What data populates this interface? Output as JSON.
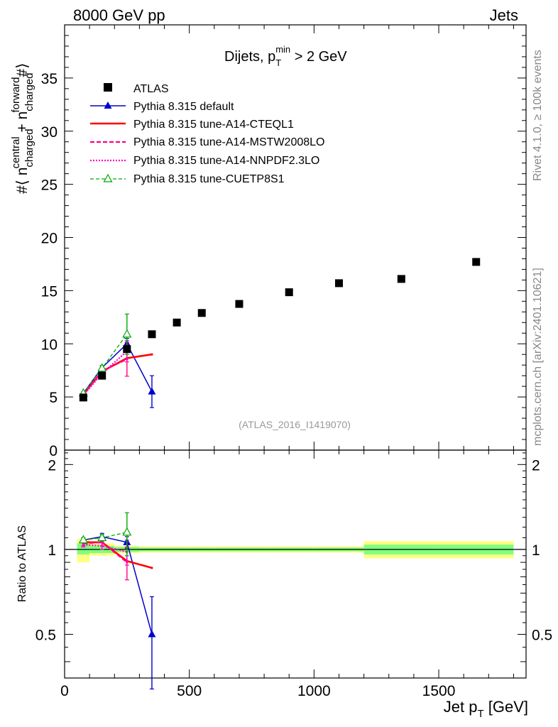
{
  "header": {
    "left": "8000 GeV pp",
    "right": "Jets"
  },
  "side_labels": {
    "rivet": "Rivet 4.1.0, ≥ 100k events",
    "mcplots": "mcplots.cern.ch [arXiv:2401.10621]"
  },
  "watermark": "(ATLAS_2016_I1419070)",
  "colors": {
    "data": "#000000",
    "default": "#0000cc",
    "cteql1": "#ff0000",
    "mstw": "#ff0080",
    "nnpdf": "#ff00cc",
    "cuetp8s1": "#00aa00",
    "band_green": "#80ff80",
    "band_yellow": "#ffff80"
  },
  "chart_data": [
    {
      "type": "scatter",
      "title": "Dijets, p_T^min > 2 GeV",
      "title_parts": {
        "main": "Dijets, p",
        "sub": "T",
        "sup": "min",
        "tail": " > 2 GeV"
      },
      "ylabel": "#⟨ n^central_charged + n^forward_charged #⟩",
      "ylabel_parts": {
        "a": "#⟨ n",
        "sup1": "central",
        "sub1": "charged",
        "b": " + n",
        "sup2": "forward",
        "sub2": "charged",
        "c": "#⟩"
      },
      "xlim": [
        0,
        1850
      ],
      "ylim": [
        0,
        40
      ],
      "yticks": [
        0,
        5,
        10,
        15,
        20,
        25,
        30,
        35
      ],
      "xticks": [
        0,
        500,
        1000,
        1500
      ],
      "legend": [
        "ATLAS",
        "Pythia 8.315 default",
        "Pythia 8.315 tune-A14-CTEQL1",
        "Pythia 8.315 tune-A14-MSTW2008LO",
        "Pythia 8.315 tune-A14-NNPDF2.3LO",
        "Pythia 8.315 tune-CUETP8S1"
      ],
      "data": {
        "name": "ATLAS",
        "x": [
          75,
          150,
          250,
          350,
          450,
          550,
          700,
          900,
          1100,
          1350,
          1650
        ],
        "y": [
          4.95,
          7.0,
          9.5,
          10.9,
          12.0,
          12.9,
          13.75,
          14.85,
          15.7,
          16.1,
          17.7
        ],
        "xerr": [
          25,
          50,
          50,
          50,
          50,
          50,
          100,
          100,
          100,
          150,
          150
        ]
      },
      "series": [
        {
          "name": "Pythia 8.315 default",
          "x": [
            75,
            150,
            250,
            350
          ],
          "y": [
            5.35,
            7.75,
            10.0,
            5.5
          ],
          "yerr": [
            0.1,
            0.2,
            0.5,
            1.5
          ],
          "marker": "triangle"
        },
        {
          "name": "Pythia 8.315 tune-A14-CTEQL1",
          "x": [
            75,
            150,
            250,
            350
          ],
          "y": [
            5.25,
            7.4,
            8.65,
            9.0
          ],
          "yerr": [
            0,
            0,
            0,
            0
          ],
          "marker": "none"
        },
        {
          "name": "Pythia 8.315 tune-A14-MSTW2008LO",
          "x": [
            75,
            150,
            250
          ],
          "y": [
            5.2,
            7.45,
            8.55
          ],
          "yerr": [
            0.1,
            0.2,
            1.6
          ],
          "marker": "none"
        },
        {
          "name": "Pythia 8.315 tune-A14-NNPDF2.3LO",
          "x": [
            75,
            150,
            250
          ],
          "y": [
            5.15,
            7.2,
            9.3
          ],
          "yerr": [
            0.1,
            0.2,
            1.0
          ],
          "marker": "none"
        },
        {
          "name": "Pythia 8.315 tune-CUETP8S1",
          "x": [
            75,
            150,
            250
          ],
          "y": [
            5.35,
            7.7,
            10.9
          ],
          "yerr": [
            0.1,
            0.2,
            1.9
          ],
          "marker": "open-triangle"
        }
      ]
    },
    {
      "type": "scatter",
      "title": "",
      "ylabel": "Ratio to ATLAS",
      "xlabel": "Jet p_T [GeV]",
      "xlabel_parts": {
        "main": "Jet p",
        "sub": "T",
        "tail": " [GeV]"
      },
      "xlim": [
        0,
        1850
      ],
      "ylim": [
        0.35,
        2.25
      ],
      "yticks": [
        0.5,
        1,
        2
      ],
      "ytick_labels": [
        "0.5",
        "1",
        "2"
      ],
      "xticks": [
        0,
        500,
        1000,
        1500
      ],
      "xtick_labels": [
        "0",
        "500",
        "1000",
        "1500"
      ],
      "reference_line": 1.0,
      "bands": [
        {
          "x_low": 50,
          "x_high": 100,
          "green": [
            0.96,
            1.05
          ],
          "yellow": [
            0.9,
            1.09
          ]
        },
        {
          "x_low": 100,
          "x_high": 200,
          "green": [
            0.97,
            1.03
          ],
          "yellow": [
            0.95,
            1.05
          ]
        },
        {
          "x_low": 200,
          "x_high": 300,
          "green": [
            0.98,
            1.02
          ],
          "yellow": [
            0.97,
            1.03
          ]
        },
        {
          "x_low": 300,
          "x_high": 400,
          "green": [
            0.985,
            1.015
          ],
          "yellow": [
            0.975,
            1.025
          ]
        },
        {
          "x_low": 400,
          "x_high": 500,
          "green": [
            0.985,
            1.015
          ],
          "yellow": [
            0.975,
            1.025
          ]
        },
        {
          "x_low": 500,
          "x_high": 600,
          "green": [
            0.985,
            1.015
          ],
          "yellow": [
            0.975,
            1.025
          ]
        },
        {
          "x_low": 600,
          "x_high": 800,
          "green": [
            0.985,
            1.015
          ],
          "yellow": [
            0.975,
            1.025
          ]
        },
        {
          "x_low": 800,
          "x_high": 1000,
          "green": [
            0.985,
            1.015
          ],
          "yellow": [
            0.975,
            1.025
          ]
        },
        {
          "x_low": 1000,
          "x_high": 1200,
          "green": [
            0.985,
            1.015
          ],
          "yellow": [
            0.975,
            1.025
          ]
        },
        {
          "x_low": 1200,
          "x_high": 1500,
          "green": [
            0.96,
            1.04
          ],
          "yellow": [
            0.93,
            1.07
          ]
        },
        {
          "x_low": 1500,
          "x_high": 1800,
          "green": [
            0.96,
            1.04
          ],
          "yellow": [
            0.93,
            1.07
          ]
        }
      ],
      "series": [
        {
          "name": "Pythia 8.315 default",
          "x": [
            75,
            150,
            250,
            350
          ],
          "y": [
            1.08,
            1.11,
            1.06,
            0.5
          ],
          "yerr": [
            0.02,
            0.03,
            0.05,
            0.18
          ]
        },
        {
          "name": "Pythia 8.315 tune-A14-CTEQL1",
          "x": [
            75,
            150,
            250,
            350
          ],
          "y": [
            1.06,
            1.06,
            0.91,
            0.86
          ],
          "yerr": [
            0,
            0,
            0,
            0
          ]
        },
        {
          "name": "Pythia 8.315 tune-A14-MSTW2008LO",
          "x": [
            75,
            150,
            250
          ],
          "y": [
            1.05,
            1.06,
            0.9
          ],
          "yerr": [
            0.02,
            0.03,
            0.12
          ]
        },
        {
          "name": "Pythia 8.315 tune-A14-NNPDF2.3LO",
          "x": [
            75,
            150,
            250
          ],
          "y": [
            1.04,
            1.03,
            0.98
          ],
          "yerr": [
            0.02,
            0.03,
            0.1
          ]
        },
        {
          "name": "Pythia 8.315 tune-CUETP8S1",
          "x": [
            75,
            150,
            250
          ],
          "y": [
            1.08,
            1.1,
            1.15
          ],
          "yerr": [
            0.02,
            0.03,
            0.2
          ]
        }
      ]
    }
  ]
}
